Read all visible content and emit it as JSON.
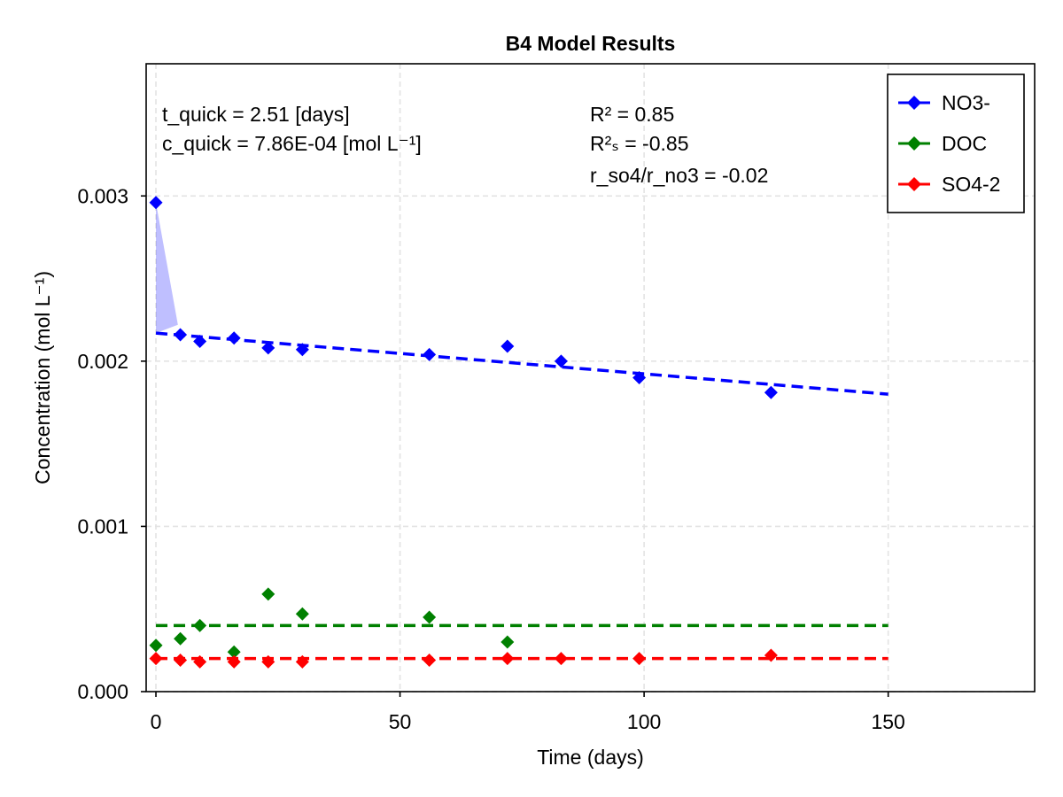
{
  "chart_data": {
    "type": "scatter",
    "title": "B4 Model Results",
    "xlabel": "Time (days)",
    "ylabel": "Concentration (mol L⁻¹)",
    "xlim": [
      -2,
      180
    ],
    "ylim": [
      0.0,
      0.0038
    ],
    "xticks": [
      0,
      50,
      100,
      150
    ],
    "xtick_labels": [
      "0",
      "50",
      "100",
      "150"
    ],
    "yticks": [
      0.0,
      0.001,
      0.002,
      0.003
    ],
    "ytick_labels": [
      "0.000",
      "0.001",
      "0.002",
      "0.003"
    ],
    "grid": true,
    "legend_position": "top-right",
    "annotations_left": [
      "t_quick = 2.51 [days]",
      "c_quick =  7.86E-04 [mol L⁻¹]"
    ],
    "annotations_right": [
      "R² = 0.85",
      "R²ₛ = -0.85",
      "r_so4/r_no3 = -0.02"
    ],
    "series": [
      {
        "name": "NO3-",
        "color": "#0000ff",
        "x": [
          0,
          5,
          9,
          16,
          23,
          30,
          56,
          72,
          83,
          99,
          126
        ],
        "y": [
          0.00296,
          0.00216,
          0.00212,
          0.00214,
          0.00208,
          0.00207,
          0.00204,
          0.00209,
          0.002,
          0.0019,
          0.00181
        ],
        "fit": {
          "x": [
            0,
            150
          ],
          "y": [
            0.00217,
            0.0018
          ]
        },
        "quick_band": {
          "x": [
            0,
            0,
            4.5
          ],
          "y": [
            0.00296,
            0.00217,
            0.00222
          ]
        }
      },
      {
        "name": "DOC",
        "color": "#008000",
        "x": [
          0,
          5,
          9,
          16,
          23,
          30,
          56,
          72
        ],
        "y": [
          0.00028,
          0.00032,
          0.0004,
          0.00024,
          0.00059,
          0.00047,
          0.00045,
          0.0003
        ],
        "fit": {
          "x": [
            0,
            150
          ],
          "y": [
            0.0004,
            0.0004
          ]
        }
      },
      {
        "name": "SO4-2",
        "color": "#ff0000",
        "x": [
          0,
          5,
          9,
          16,
          23,
          30,
          56,
          72,
          83,
          99,
          126
        ],
        "y": [
          0.0002,
          0.00019,
          0.00018,
          0.00018,
          0.00018,
          0.00018,
          0.00019,
          0.0002,
          0.0002,
          0.0002,
          0.00022
        ],
        "fit": {
          "x": [
            0,
            150
          ],
          "y": [
            0.0002,
            0.0002
          ]
        }
      }
    ]
  }
}
